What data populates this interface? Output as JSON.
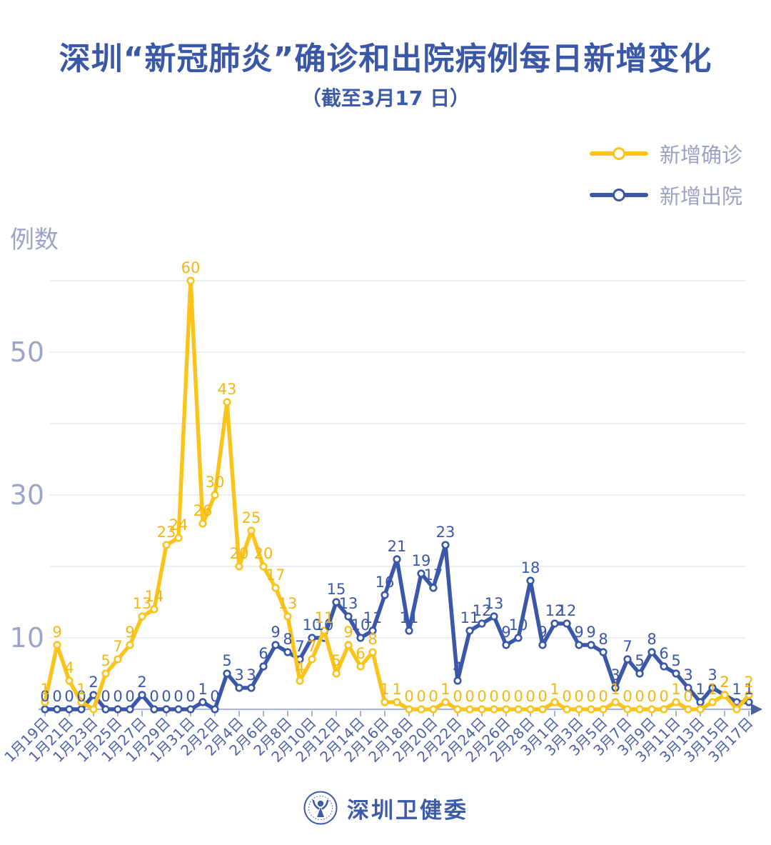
{
  "page": {
    "title": "深圳“新冠肺炎”确诊和出院病例每日新增变化",
    "subtitle": "（截至3月17 日）",
    "footer_brand": "深圳卫健委"
  },
  "legend": [
    {
      "label": "新增确诊",
      "color": "#FAC41B"
    },
    {
      "label": "新增出院",
      "color": "#3A57A9"
    }
  ],
  "axis": {
    "y_unit_label": "例数",
    "y_tick_labels": [
      50,
      30,
      10
    ],
    "y_gridline_values": [
      60,
      50,
      40,
      30,
      20,
      10
    ],
    "x_label_every": 2
  },
  "colors": {
    "title": "#3A57A8",
    "confirmed_line": "#FAC41B",
    "confirmed_label": "#F2B712",
    "discharged_line": "#3A57A9",
    "discharged_label": "#3A57A9",
    "gridline": "#E6E6F0",
    "axis_line": "#ACB4D6",
    "axis_arrow": "#4C5F9F",
    "x_label": "#4E60A7",
    "y_label": "#9DA4C9",
    "legend_text": "#9BA2C4"
  },
  "chart_data": {
    "type": "line",
    "title": "深圳“新冠肺炎”确诊和出院病例每日新增变化",
    "subtitle": "（截至3月17 日）",
    "ylabel": "例数",
    "ylim": [
      0,
      63
    ],
    "grid": true,
    "legend_position": "top-right",
    "x": [
      "1月19日",
      "1月20日",
      "1月21日",
      "1月22日",
      "1月23日",
      "1月24日",
      "1月25日",
      "1月26日",
      "1月27日",
      "1月28日",
      "1月29日",
      "1月30日",
      "1月31日",
      "2月1日",
      "2月2日",
      "2月3日",
      "2月4日",
      "2月5日",
      "2月6日",
      "2月7日",
      "2月8日",
      "2月9日",
      "2月10日",
      "2月11日",
      "2月12日",
      "2月13日",
      "2月14日",
      "2月15日",
      "2月16日",
      "2月17日",
      "2月18日",
      "2月19日",
      "2月20日",
      "2月21日",
      "2月22日",
      "2月23日",
      "2月24日",
      "2月25日",
      "2月26日",
      "2月27日",
      "2月28日",
      "2月29日",
      "3月1日",
      "3月2日",
      "3月3日",
      "3月4日",
      "3月5日",
      "3月6日",
      "3月7日",
      "3月8日",
      "3月9日",
      "3月10日",
      "3月11日",
      "3月12日",
      "3月13日",
      "3月14日",
      "3月15日",
      "3月16日",
      "3月17日"
    ],
    "series": [
      {
        "name": "新增确诊",
        "values": [
          1,
          9,
          4,
          1,
          0,
          5,
          7,
          9,
          13,
          14,
          23,
          24,
          60,
          26,
          30,
          43,
          20,
          25,
          20,
          17,
          13,
          4,
          7,
          11,
          5,
          9,
          6,
          8,
          1,
          1,
          0,
          0,
          0,
          1,
          0,
          0,
          0,
          0,
          0,
          0,
          0,
          0,
          1,
          0,
          0,
          0,
          0,
          1,
          0,
          0,
          0,
          0,
          1,
          0,
          0,
          1,
          2,
          0,
          2
        ]
      },
      {
        "name": "新增出院",
        "values": [
          0,
          0,
          0,
          0,
          2,
          0,
          0,
          0,
          2,
          0,
          0,
          0,
          0,
          1,
          0,
          5,
          3,
          3,
          6,
          9,
          8,
          7,
          10,
          10,
          15,
          13,
          10,
          11,
          16,
          21,
          11,
          19,
          17,
          23,
          4,
          11,
          12,
          13,
          9,
          10,
          18,
          9,
          12,
          12,
          9,
          9,
          8,
          3,
          7,
          5,
          8,
          6,
          5,
          3,
          1,
          3,
          2,
          1,
          1
        ]
      }
    ]
  }
}
